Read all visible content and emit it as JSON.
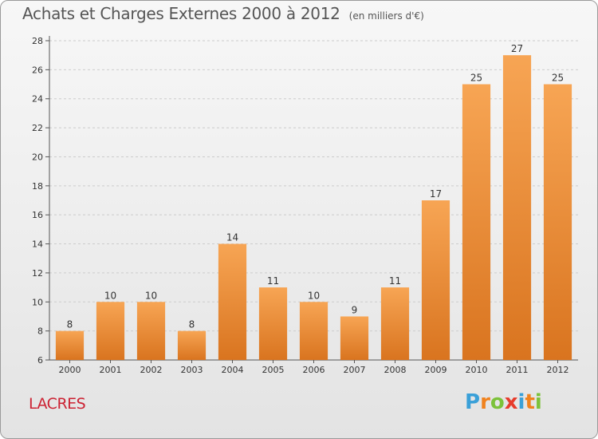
{
  "header": {
    "title": "Achats et Charges Externes 2000 à 2012",
    "unit": "(en milliers d'€)"
  },
  "footer": {
    "place": "LACRES",
    "logo_text": "Proxiti",
    "logo_colors": [
      "#3aa0d8",
      "#f0821e",
      "#7cc23a",
      "#e63c2c",
      "#3aa0d8",
      "#f0821e",
      "#7cc23a"
    ]
  },
  "colors": {
    "bar_top": "#f7a554",
    "bar_bottom": "#d9741f",
    "axis": "#555555",
    "grid": "#cccccc",
    "text": "#333333"
  },
  "chart_data": {
    "type": "bar",
    "title": "Achats et Charges Externes 2000 à 2012",
    "subtitle": "(en milliers d'€)",
    "categories": [
      "2000",
      "2001",
      "2002",
      "2003",
      "2004",
      "2005",
      "2006",
      "2007",
      "2008",
      "2009",
      "2010",
      "2011",
      "2012"
    ],
    "values": [
      8,
      10,
      10,
      8,
      14,
      11,
      10,
      9,
      11,
      17,
      25,
      27,
      25
    ],
    "ylim": [
      6,
      28
    ],
    "yticks": [
      6,
      8,
      10,
      12,
      14,
      16,
      18,
      20,
      22,
      24,
      26,
      28
    ],
    "grid": "horizontal dashed",
    "xlabel": "",
    "ylabel": ""
  }
}
